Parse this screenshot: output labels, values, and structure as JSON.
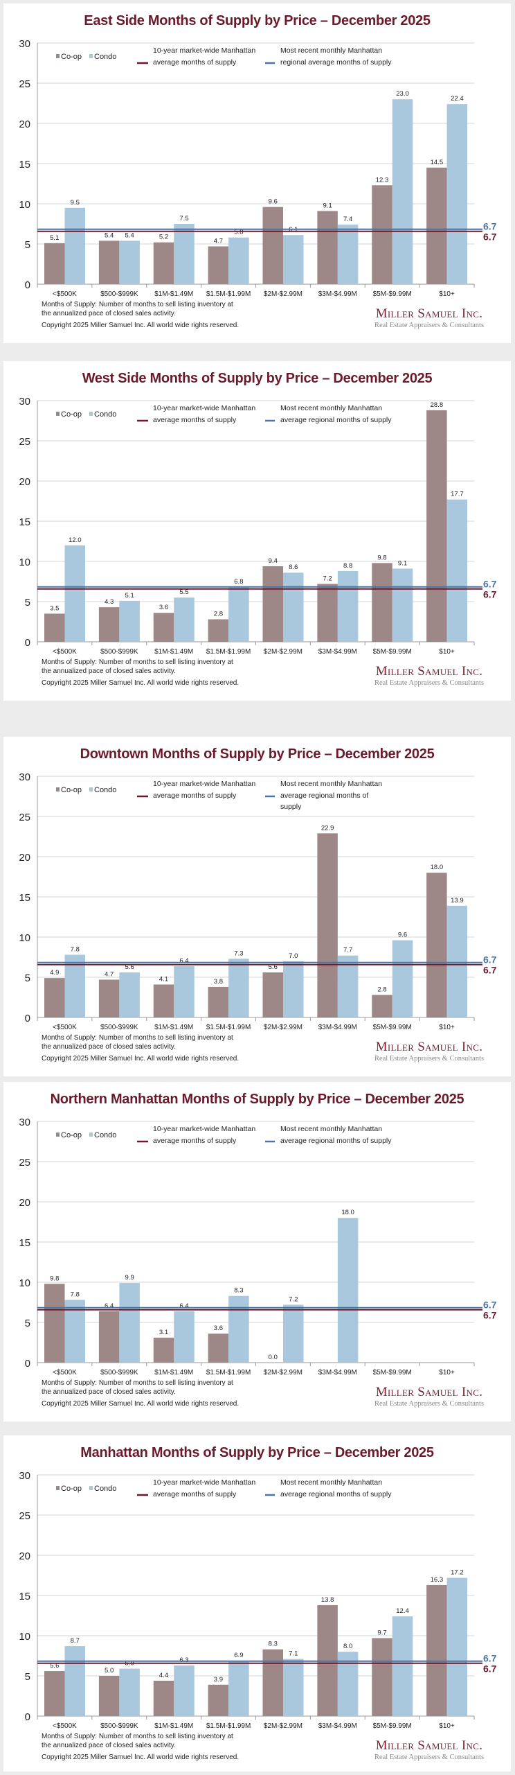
{
  "colors": {
    "coop": "#9e8787",
    "condo": "#a9c7dd",
    "ten_year_line": "#6b1a2b",
    "regional_line": "#4d74a3",
    "title": "#6b1a2b"
  },
  "footer": {
    "note_line1": "Months of Supply: Number of months to sell listing inventory at",
    "note_line2": "the annualized pace of closed sales activity.",
    "copyright": "Copyright 2025 Miller Samuel Inc.  All world wide rights reserved.",
    "logo_name": "Miller Samuel Inc.",
    "logo_tagline": "Real Estate Appraisers & Consultants"
  },
  "chart_data": [
    {
      "type": "bar",
      "title": "East Side Months of Supply by Price – December 2025",
      "categories": [
        "<$500K",
        "$500-$999K",
        "$1M-$1.49M",
        "$1.5M-$1.99M",
        "$2M-$2.99M",
        "$3M-$4.99M",
        "$5M-$9.99M",
        "$10+"
      ],
      "series": [
        {
          "name": "Co-op",
          "values": [
            5.1,
            5.4,
            5.2,
            4.7,
            9.6,
            9.1,
            12.3,
            14.5
          ]
        },
        {
          "name": "Condo",
          "values": [
            9.5,
            5.4,
            7.5,
            5.8,
            6.1,
            7.4,
            23.0,
            22.4
          ]
        }
      ],
      "reference_lines": [
        {
          "name_line1": "10-year market-wide Manhattan",
          "name_line2": "average months of supply",
          "value": 6.7,
          "label": "6.7"
        },
        {
          "name_line1": "Most recent monthly Manhattan",
          "name_line2": "regional average months of supply",
          "value": 6.7,
          "label": "6.7"
        }
      ],
      "yticks": [
        "0",
        "5",
        "10",
        "15",
        "20",
        "25",
        "30"
      ],
      "ylim": [
        0,
        30
      ],
      "grid": true,
      "legend": "top-left"
    },
    {
      "type": "bar",
      "title": "West Side Months of Supply by Price – December 2025",
      "categories": [
        "<$500K",
        "$500-$999K",
        "$1M-$1.49M",
        "$1.5M-$1.99M",
        "$2M-$2.99M",
        "$3M-$4.99M",
        "$5M-$9.99M",
        "$10+"
      ],
      "series": [
        {
          "name": "Co-op",
          "values": [
            3.5,
            4.3,
            3.6,
            2.8,
            9.4,
            7.2,
            9.8,
            28.8
          ]
        },
        {
          "name": "Condo",
          "values": [
            12.0,
            5.1,
            5.5,
            6.8,
            8.6,
            8.8,
            9.1,
            17.7
          ]
        }
      ],
      "reference_lines": [
        {
          "name_line1": "10-year market-wide Manhattan",
          "name_line2": "average months of supply",
          "value": 6.7,
          "label": "6.7"
        },
        {
          "name_line1": "Most recent monthly Manhattan",
          "name_line2": "average regional months of supply",
          "value": 6.7,
          "label": "6.7"
        }
      ],
      "yticks": [
        "0",
        "5",
        "10",
        "15",
        "20",
        "25",
        "30"
      ],
      "ylim": [
        0,
        30
      ],
      "grid": true,
      "legend": "top-left"
    },
    {
      "type": "bar",
      "title": "Downtown Months of Supply by Price – December 2025",
      "categories": [
        "<$500K",
        "$500-$999K",
        "$1M-$1.49M",
        "$1.5M-$1.99M",
        "$2M-$2.99M",
        "$3M-$4.99M",
        "$5M-$9.99M",
        "$10+"
      ],
      "series": [
        {
          "name": "Co-op",
          "values": [
            4.9,
            4.7,
            4.1,
            3.8,
            5.6,
            22.9,
            2.8,
            18.0
          ]
        },
        {
          "name": "Condo",
          "values": [
            7.8,
            5.6,
            6.4,
            7.3,
            7.0,
            7.7,
            9.6,
            13.9
          ]
        }
      ],
      "reference_lines": [
        {
          "name_line1": "10-year market-wide Manhattan",
          "name_line2": "average months of supply",
          "value": 6.7,
          "label": "6.7"
        },
        {
          "name_line1": "Most recent monthly Manhattan",
          "name_line2": "average regional months of",
          "name_line3": "supply",
          "value": 6.7,
          "label": "6.7"
        }
      ],
      "yticks": [
        "0",
        "5",
        "10",
        "15",
        "20",
        "25",
        "30"
      ],
      "ylim": [
        0,
        30
      ],
      "grid": true,
      "legend": "top-left"
    },
    {
      "type": "bar",
      "title": "Northern Manhattan Months of Supply by Price – December 2025",
      "categories": [
        "<$500K",
        "$500-$999K",
        "$1M-$1.49M",
        "$1.5M-$1.99M",
        "$2M-$2.99M",
        "$3M-$4.99M",
        "$5M-$9.99M",
        "$10+"
      ],
      "series": [
        {
          "name": "Co-op",
          "values": [
            9.8,
            6.4,
            3.1,
            3.6,
            0.0,
            null,
            null,
            null
          ]
        },
        {
          "name": "Condo",
          "values": [
            7.8,
            9.9,
            6.4,
            8.3,
            7.2,
            18.0,
            null,
            null
          ]
        }
      ],
      "reference_lines": [
        {
          "name_line1": "10-year market-wide Manhattan",
          "name_line2": "average months of supply",
          "value": 6.7,
          "label": "6.7"
        },
        {
          "name_line1": "Most recent monthly Manhattan",
          "name_line2": "average regional months of supply",
          "value": 6.7,
          "label": "6.7"
        }
      ],
      "yticks": [
        "0",
        "5",
        "10",
        "15",
        "20",
        "25",
        "30"
      ],
      "ylim": [
        0,
        30
      ],
      "grid": true,
      "legend": "top-left"
    },
    {
      "type": "bar",
      "title": "Manhattan Months of Supply by Price – December 2025",
      "categories": [
        "<$500K",
        "$500-$999K",
        "$1M-$1.49M",
        "$1.5M-$1.99M",
        "$2M-$2.99M",
        "$3M-$4.99M",
        "$5M-$9.99M",
        "$10+"
      ],
      "series": [
        {
          "name": "Co-op",
          "values": [
            5.6,
            5.0,
            4.4,
            3.9,
            8.3,
            13.8,
            9.7,
            16.3
          ]
        },
        {
          "name": "Condo",
          "values": [
            8.7,
            5.9,
            6.3,
            6.9,
            7.1,
            8.0,
            12.4,
            17.2
          ]
        }
      ],
      "reference_lines": [
        {
          "name_line1": "10-year market-wide Manhattan",
          "name_line2": "average months of supply",
          "value": 6.7,
          "label": "6.7"
        },
        {
          "name_line1": "Most recent monthly Manhattan",
          "name_line2": "average regional months of supply",
          "value": 6.7,
          "label": "6.7"
        }
      ],
      "yticks": [
        "0",
        "5",
        "10",
        "15",
        "20",
        "25",
        "30"
      ],
      "ylim": [
        0,
        30
      ],
      "grid": true,
      "legend": "top-left"
    }
  ]
}
